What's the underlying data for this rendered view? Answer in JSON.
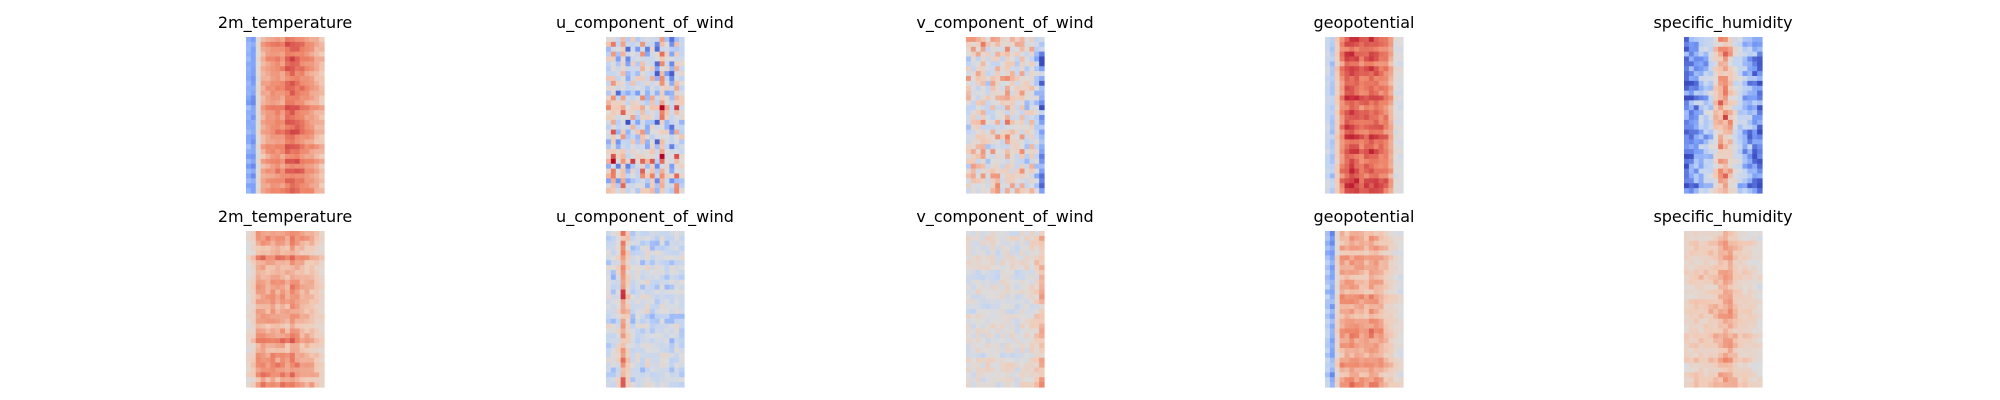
{
  "colormap": {
    "name": "coolwarm",
    "stops": [
      "#3b4cc0",
      "#7b9ff9",
      "#c0d4f5",
      "#dddcdc",
      "#f2cbb7",
      "#ee8468",
      "#b40426"
    ]
  },
  "chart_data": [
    {
      "type": "heatmap",
      "row": 0,
      "col": 0,
      "title": "2m_temperature",
      "columns": [
        0.22,
        0.18,
        0.52,
        0.74,
        0.78,
        0.8,
        0.82,
        0.8,
        0.86,
        0.88,
        0.86,
        0.84,
        0.8,
        0.78,
        0.74,
        0.7
      ],
      "fine_noise": 0.03,
      "streak_noise": 0.05
    },
    {
      "type": "heatmap",
      "row": 0,
      "col": 1,
      "title": "u_component_of_wind",
      "columns": [
        0.5,
        0.72,
        0.4,
        0.65,
        0.3,
        0.58,
        0.44,
        0.62,
        0.4,
        0.55,
        0.35,
        0.7,
        0.45,
        0.3,
        0.6,
        0.5
      ],
      "fine_noise": 0.22,
      "streak_noise": 0.15
    },
    {
      "type": "heatmap",
      "row": 0,
      "col": 2,
      "title": "v_component_of_wind",
      "columns": [
        0.52,
        0.6,
        0.55,
        0.62,
        0.48,
        0.58,
        0.6,
        0.54,
        0.62,
        0.56,
        0.52,
        0.6,
        0.48,
        0.58,
        0.4,
        0.2
      ],
      "fine_noise": 0.2,
      "streak_noise": 0.08
    },
    {
      "type": "heatmap",
      "row": 0,
      "col": 3,
      "title": "geopotential",
      "columns": [
        0.4,
        0.3,
        0.62,
        0.8,
        0.88,
        0.9,
        0.88,
        0.84,
        0.86,
        0.88,
        0.86,
        0.84,
        0.82,
        0.74,
        0.5,
        0.48
      ],
      "fine_noise": 0.04,
      "streak_noise": 0.05
    },
    {
      "type": "heatmap",
      "row": 0,
      "col": 4,
      "title": "specific_humidity",
      "columns": [
        0.08,
        0.14,
        0.2,
        0.26,
        0.3,
        0.36,
        0.56,
        0.7,
        0.74,
        0.66,
        0.48,
        0.34,
        0.28,
        0.22,
        0.16,
        0.1
      ],
      "fine_noise": 0.12,
      "streak_noise": 0.08
    },
    {
      "type": "heatmap",
      "row": 1,
      "col": 0,
      "title": "2m_temperature",
      "columns": [
        0.55,
        0.62,
        0.76,
        0.78,
        0.76,
        0.78,
        0.76,
        0.78,
        0.74,
        0.8,
        0.76,
        0.74,
        0.72,
        0.7,
        0.66,
        0.6
      ],
      "fine_noise": 0.05,
      "streak_noise": 0.07
    },
    {
      "type": "heatmap",
      "row": 1,
      "col": 1,
      "title": "u_component_of_wind",
      "columns": [
        0.42,
        0.38,
        0.5,
        0.8,
        0.6,
        0.4,
        0.44,
        0.4,
        0.46,
        0.38,
        0.42,
        0.44,
        0.4,
        0.38,
        0.42,
        0.4
      ],
      "fine_noise": 0.12,
      "streak_noise": 0.06
    },
    {
      "type": "heatmap",
      "row": 1,
      "col": 2,
      "title": "v_component_of_wind",
      "columns": [
        0.5,
        0.44,
        0.5,
        0.48,
        0.5,
        0.52,
        0.46,
        0.5,
        0.52,
        0.5,
        0.46,
        0.52,
        0.5,
        0.54,
        0.58,
        0.7
      ],
      "fine_noise": 0.1,
      "streak_noise": 0.05
    },
    {
      "type": "heatmap",
      "row": 1,
      "col": 3,
      "title": "geopotential",
      "columns": [
        0.3,
        0.2,
        0.55,
        0.74,
        0.74,
        0.76,
        0.74,
        0.74,
        0.72,
        0.76,
        0.74,
        0.72,
        0.66,
        0.62,
        0.55,
        0.5
      ],
      "fine_noise": 0.05,
      "streak_noise": 0.07
    },
    {
      "type": "heatmap",
      "row": 1,
      "col": 4,
      "title": "specific_humidity",
      "columns": [
        0.58,
        0.6,
        0.62,
        0.62,
        0.62,
        0.64,
        0.66,
        0.7,
        0.74,
        0.72,
        0.66,
        0.62,
        0.6,
        0.58,
        0.55,
        0.52
      ],
      "fine_noise": 0.06,
      "streak_noise": 0.05
    }
  ]
}
